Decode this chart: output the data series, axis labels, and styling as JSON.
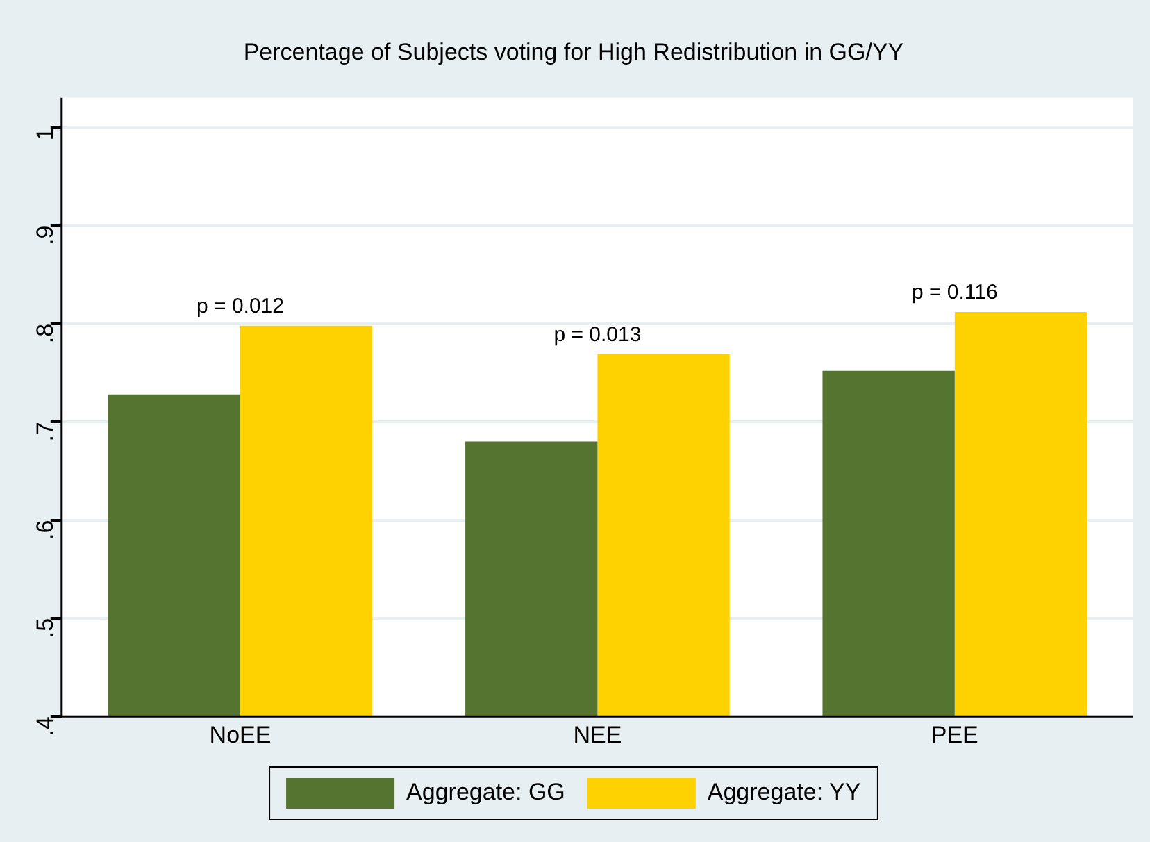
{
  "chart_data": {
    "type": "bar",
    "title": "Percentage of Subjects voting for High Redistribution in GG/YY",
    "categories": [
      "NoEE",
      "NEE",
      "PEE"
    ],
    "series": [
      {
        "name": "Aggregate: GG",
        "color": "#55742f",
        "values": [
          0.728,
          0.68,
          0.752
        ]
      },
      {
        "name": "Aggregate: YY",
        "color": "#fed100",
        "values": [
          0.798,
          0.769,
          0.812
        ]
      }
    ],
    "ylim": [
      0.4,
      1.03
    ],
    "yticks": [
      {
        "value": 0.4,
        "label": ".4"
      },
      {
        "value": 0.5,
        "label": ".5"
      },
      {
        "value": 0.6,
        "label": ".6"
      },
      {
        "value": 0.7,
        "label": ".7"
      },
      {
        "value": 0.8,
        "label": ".8"
      },
      {
        "value": 0.9,
        "label": ".9"
      },
      1
    ],
    "grid": "y",
    "legend": "bottom",
    "annotations": [
      {
        "text": "p = 0.012",
        "x": "NoEE",
        "y": 0.798
      },
      {
        "text": "p = 0.013",
        "x": "NEE",
        "y": 0.769
      },
      {
        "text": "p = 0.116",
        "x": "PEE",
        "y": 0.812
      }
    ]
  }
}
